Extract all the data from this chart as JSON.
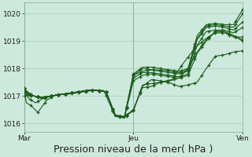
{
  "bg_color": "#cde8dc",
  "grid_color": "#aacfbe",
  "line_color": "#1a5c1a",
  "marker_color": "#1a5c1a",
  "xlabel": "Pression niveau de la mer( hPa )",
  "xlabel_fontsize": 9,
  "ylim": [
    1015.7,
    1020.4
  ],
  "yticks": [
    1016,
    1017,
    1018,
    1019,
    1020
  ],
  "xtick_labels": [
    "Mar",
    "Jeu",
    "Ven"
  ],
  "xtick_positions": [
    0,
    48,
    96
  ],
  "vline_positions": [
    0,
    48,
    96
  ],
  "n_points": 97,
  "lines": [
    {
      "waypoints": [
        [
          0,
          1017.3
        ],
        [
          1,
          1016.75
        ],
        [
          3,
          1016.65
        ],
        [
          6,
          1016.4
        ],
        [
          10,
          1016.85
        ],
        [
          14,
          1017.05
        ],
        [
          18,
          1017.05
        ],
        [
          22,
          1017.1
        ],
        [
          26,
          1017.15
        ],
        [
          30,
          1017.2
        ],
        [
          35,
          1017.2
        ],
        [
          40,
          1016.25
        ],
        [
          44,
          1016.25
        ],
        [
          48,
          1016.5
        ],
        [
          52,
          1017.3
        ],
        [
          56,
          1017.35
        ],
        [
          60,
          1017.5
        ],
        [
          64,
          1017.55
        ],
        [
          68,
          1017.65
        ],
        [
          72,
          1018.0
        ],
        [
          76,
          1018.6
        ],
        [
          80,
          1019.05
        ],
        [
          84,
          1019.35
        ],
        [
          88,
          1019.35
        ],
        [
          92,
          1019.2
        ],
        [
          96,
          1019.0
        ]
      ]
    },
    {
      "waypoints": [
        [
          0,
          1017.3
        ],
        [
          2,
          1016.9
        ],
        [
          5,
          1016.75
        ],
        [
          8,
          1016.9
        ],
        [
          12,
          1017.0
        ],
        [
          16,
          1017.05
        ],
        [
          20,
          1017.1
        ],
        [
          24,
          1017.15
        ],
        [
          28,
          1017.2
        ],
        [
          32,
          1017.2
        ],
        [
          36,
          1017.15
        ],
        [
          40,
          1016.3
        ],
        [
          44,
          1016.25
        ],
        [
          48,
          1016.45
        ],
        [
          52,
          1017.4
        ],
        [
          56,
          1017.45
        ],
        [
          60,
          1017.5
        ],
        [
          65,
          1017.6
        ],
        [
          70,
          1018.2
        ],
        [
          75,
          1018.75
        ],
        [
          80,
          1019.1
        ],
        [
          84,
          1019.3
        ],
        [
          88,
          1019.3
        ],
        [
          92,
          1019.15
        ],
        [
          96,
          1019.15
        ]
      ]
    },
    {
      "waypoints": [
        [
          0,
          1017.25
        ],
        [
          4,
          1017.0
        ],
        [
          8,
          1016.9
        ],
        [
          12,
          1017.0
        ],
        [
          16,
          1017.05
        ],
        [
          20,
          1017.1
        ],
        [
          24,
          1017.15
        ],
        [
          28,
          1017.2
        ],
        [
          32,
          1017.2
        ],
        [
          36,
          1017.15
        ],
        [
          40,
          1016.25
        ],
        [
          44,
          1016.2
        ],
        [
          48,
          1016.5
        ],
        [
          52,
          1017.35
        ],
        [
          56,
          1017.6
        ],
        [
          60,
          1017.55
        ],
        [
          65,
          1017.45
        ],
        [
          68,
          1017.35
        ],
        [
          72,
          1017.4
        ],
        [
          76,
          1017.5
        ],
        [
          80,
          1018.0
        ],
        [
          84,
          1018.45
        ],
        [
          88,
          1018.5
        ],
        [
          92,
          1018.6
        ],
        [
          96,
          1018.65
        ]
      ]
    },
    {
      "waypoints": [
        [
          0,
          1017.2
        ],
        [
          4,
          1017.0
        ],
        [
          8,
          1016.95
        ],
        [
          12,
          1017.0
        ],
        [
          16,
          1017.05
        ],
        [
          20,
          1017.1
        ],
        [
          24,
          1017.15
        ],
        [
          28,
          1017.2
        ],
        [
          32,
          1017.2
        ],
        [
          36,
          1017.15
        ],
        [
          40,
          1016.3
        ],
        [
          44,
          1016.2
        ],
        [
          48,
          1017.55
        ],
        [
          52,
          1017.75
        ],
        [
          56,
          1017.8
        ],
        [
          60,
          1017.75
        ],
        [
          64,
          1017.7
        ],
        [
          68,
          1017.65
        ],
        [
          72,
          1017.75
        ],
        [
          76,
          1018.55
        ],
        [
          80,
          1019.0
        ],
        [
          84,
          1019.35
        ],
        [
          88,
          1019.35
        ],
        [
          92,
          1019.2
        ],
        [
          96,
          1019.05
        ]
      ]
    },
    {
      "waypoints": [
        [
          0,
          1017.15
        ],
        [
          4,
          1017.0
        ],
        [
          8,
          1016.95
        ],
        [
          12,
          1017.0
        ],
        [
          16,
          1017.05
        ],
        [
          20,
          1017.1
        ],
        [
          24,
          1017.15
        ],
        [
          28,
          1017.2
        ],
        [
          32,
          1017.2
        ],
        [
          36,
          1017.15
        ],
        [
          40,
          1016.3
        ],
        [
          44,
          1016.2
        ],
        [
          48,
          1017.65
        ],
        [
          52,
          1017.85
        ],
        [
          56,
          1017.85
        ],
        [
          60,
          1017.8
        ],
        [
          64,
          1017.75
        ],
        [
          68,
          1017.7
        ],
        [
          72,
          1017.8
        ],
        [
          76,
          1018.85
        ],
        [
          80,
          1019.35
        ],
        [
          84,
          1019.4
        ],
        [
          88,
          1019.4
        ],
        [
          92,
          1019.3
        ],
        [
          96,
          1019.5
        ]
      ]
    },
    {
      "waypoints": [
        [
          0,
          1017.1
        ],
        [
          4,
          1017.0
        ],
        [
          8,
          1016.95
        ],
        [
          12,
          1017.0
        ],
        [
          16,
          1017.05
        ],
        [
          20,
          1017.1
        ],
        [
          24,
          1017.15
        ],
        [
          28,
          1017.2
        ],
        [
          32,
          1017.2
        ],
        [
          36,
          1017.15
        ],
        [
          40,
          1016.3
        ],
        [
          44,
          1016.2
        ],
        [
          48,
          1017.75
        ],
        [
          52,
          1017.9
        ],
        [
          56,
          1017.95
        ],
        [
          60,
          1017.9
        ],
        [
          64,
          1017.85
        ],
        [
          68,
          1017.8
        ],
        [
          72,
          1017.9
        ],
        [
          76,
          1019.05
        ],
        [
          80,
          1019.5
        ],
        [
          84,
          1019.55
        ],
        [
          88,
          1019.5
        ],
        [
          92,
          1019.4
        ],
        [
          96,
          1019.7
        ]
      ]
    },
    {
      "waypoints": [
        [
          0,
          1017.05
        ],
        [
          4,
          1017.0
        ],
        [
          8,
          1016.95
        ],
        [
          12,
          1017.0
        ],
        [
          16,
          1017.05
        ],
        [
          20,
          1017.1
        ],
        [
          24,
          1017.15
        ],
        [
          28,
          1017.2
        ],
        [
          32,
          1017.2
        ],
        [
          36,
          1017.15
        ],
        [
          40,
          1016.3
        ],
        [
          44,
          1016.2
        ],
        [
          48,
          1017.75
        ],
        [
          52,
          1018.0
        ],
        [
          56,
          1017.95
        ],
        [
          60,
          1017.95
        ],
        [
          64,
          1017.9
        ],
        [
          68,
          1017.85
        ],
        [
          72,
          1017.95
        ],
        [
          76,
          1019.1
        ],
        [
          80,
          1019.55
        ],
        [
          84,
          1019.6
        ],
        [
          88,
          1019.55
        ],
        [
          92,
          1019.5
        ],
        [
          96,
          1020.0
        ]
      ]
    },
    {
      "waypoints": [
        [
          0,
          1017.0
        ],
        [
          4,
          1017.0
        ],
        [
          8,
          1016.95
        ],
        [
          12,
          1017.0
        ],
        [
          16,
          1017.05
        ],
        [
          20,
          1017.1
        ],
        [
          24,
          1017.15
        ],
        [
          28,
          1017.2
        ],
        [
          32,
          1017.2
        ],
        [
          36,
          1017.15
        ],
        [
          40,
          1016.3
        ],
        [
          44,
          1016.2
        ],
        [
          48,
          1017.8
        ],
        [
          52,
          1018.05
        ],
        [
          56,
          1018.05
        ],
        [
          60,
          1018.0
        ],
        [
          64,
          1017.95
        ],
        [
          68,
          1017.9
        ],
        [
          72,
          1018.0
        ],
        [
          76,
          1019.2
        ],
        [
          80,
          1019.6
        ],
        [
          84,
          1019.65
        ],
        [
          88,
          1019.6
        ],
        [
          92,
          1019.6
        ],
        [
          96,
          1020.15
        ]
      ]
    }
  ]
}
